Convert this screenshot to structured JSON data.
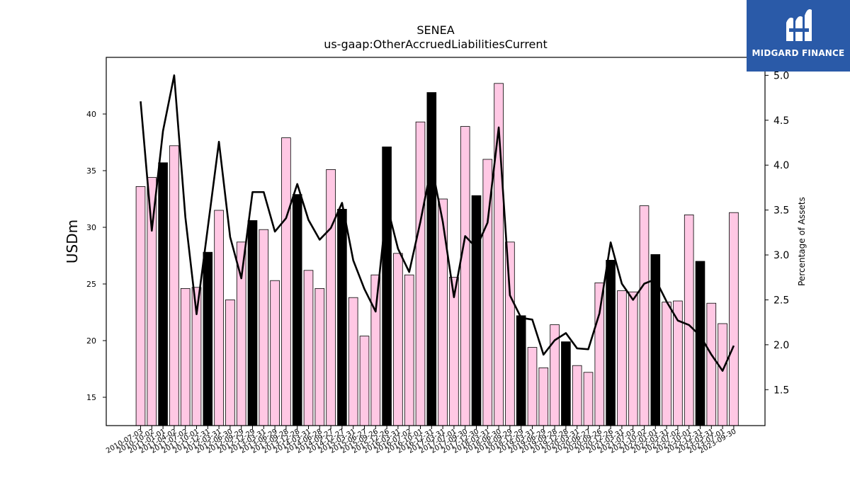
{
  "chart_data": {
    "type": "bar",
    "title": "SENEA",
    "subtitle": "us-gaap:OtherAccruedLiabilitiesCurrent",
    "ylabel": "USDm",
    "y2label": "Percentage of Assets",
    "ylim": [
      12.5,
      45
    ],
    "y2lim": [
      1.1,
      5.2
    ],
    "yticks": [
      15,
      20,
      25,
      30,
      35,
      40
    ],
    "y2ticks": [
      1.5,
      2.0,
      2.5,
      3.0,
      3.5,
      4.0,
      4.5,
      5.0
    ],
    "colors": {
      "bar_default": "#ffc8e4",
      "bar_highlight": "#000000",
      "line": "#000000",
      "edge": "#000000"
    },
    "categories": [
      "2010-07-03",
      "2010-10-02",
      "2011-01-01",
      "2011-04-02",
      "2011-07-02",
      "2011-10-01",
      "2011-12-31",
      "2012-03-31",
      "2012-06-30",
      "2012-09-29",
      "2012-12-29",
      "2013-03-31",
      "2013-06-29",
      "2013-09-28",
      "2013-12-28",
      "2014-03-31",
      "2014-06-28",
      "2014-09-27",
      "2014-12-27",
      "2015-03-31",
      "2015-06-27",
      "2015-09-26",
      "2015-12-26",
      "2016-03-31",
      "2016-07-02",
      "2016-10-01",
      "2016-12-31",
      "2017-03-31",
      "2017-07-01",
      "2017-09-30",
      "2017-12-30",
      "2018-03-31",
      "2018-06-30",
      "2018-09-29",
      "2018-12-29",
      "2019-03-31",
      "2019-06-29",
      "2019-09-28",
      "2019-12-28",
      "2020-03-31",
      "2020-06-27",
      "2020-09-26",
      "2020-12-26",
      "2021-03-31",
      "2021-07-03",
      "2021-10-02",
      "2022-01-01",
      "2022-03-31",
      "2022-07-02",
      "2022-10-01",
      "2022-12-31",
      "2023-03-31",
      "2023-07-01",
      "2023-09-30"
    ],
    "tick_labels": [
      "2010-07-03",
      "2010-10-02",
      "2011-01-01",
      "2011-04-02",
      "2011-07-02",
      "2011-10-01",
      "2011-12-31",
      "2012-03-31",
      "2012-06-30",
      "2012-09-29",
      "2012-12-29",
      "2013-03-31",
      "2013-06-29",
      "2013-09-28",
      "2013-12-28",
      "2014-03-31",
      "2014-06-28",
      "2014-09-27",
      "2014-12-27",
      "2015-03-31",
      "2015-06-27",
      "2015-09-26",
      "2015-12-26",
      "2016-03-31",
      "2016-07-02",
      "2016-10-01",
      "2016-12-31",
      "2017-03-31",
      "2017-07-01",
      "2017-09-30",
      "2017-12-30",
      "2018-03-31",
      "2018-06-30",
      "2018-09-29",
      "2018-12-29",
      "2019-03-31",
      "2019-06-29",
      "2019-09-28",
      "2019-12-28",
      "2020-03-31",
      "2020-06-27",
      "2020-09-26",
      "2020-12-26",
      "2021-03-31",
      "2021-07-03",
      "2021-10-02",
      "2022-01-01",
      "2022-03-31",
      "2022-07-02",
      "2022-10-01",
      "2022-12-31",
      "2023-03-31",
      "2023-07-01",
      "2023-09-30"
    ],
    "series": [
      {
        "type": "bar",
        "values": [
          33.6,
          34.4,
          35.7,
          37.2,
          24.6,
          24.7,
          27.8,
          31.5,
          23.6,
          28.7,
          30.6,
          29.8,
          25.3,
          37.9,
          32.9,
          26.2,
          24.6,
          35.1,
          31.6,
          23.8,
          20.4,
          25.8,
          37.1,
          27.7,
          25.8,
          39.3,
          41.9,
          32.5,
          25.6,
          38.9,
          32.8,
          36.0,
          42.7,
          28.7,
          22.2,
          19.4,
          17.6,
          21.4,
          19.9,
          17.8,
          17.2,
          25.1,
          27.1,
          24.4,
          24.3,
          31.9,
          27.6,
          23.4,
          23.5,
          31.1,
          27.0,
          23.3,
          21.5,
          31.3
        ],
        "highlight": [
          false,
          false,
          true,
          false,
          false,
          false,
          true,
          false,
          false,
          false,
          true,
          false,
          false,
          false,
          true,
          false,
          false,
          false,
          true,
          false,
          false,
          false,
          true,
          false,
          false,
          false,
          true,
          false,
          false,
          false,
          true,
          false,
          false,
          false,
          true,
          false,
          false,
          false,
          true,
          false,
          false,
          false,
          true,
          false,
          false,
          false,
          true,
          false,
          false,
          false,
          true,
          false,
          false,
          false
        ]
      },
      {
        "type": "line",
        "axis": "right",
        "values": [
          4.71,
          3.27,
          4.38,
          5.0,
          3.42,
          2.34,
          3.3,
          4.26,
          3.2,
          2.74,
          3.7,
          3.7,
          3.26,
          3.41,
          3.79,
          3.39,
          3.17,
          3.3,
          3.58,
          2.94,
          2.62,
          2.37,
          3.56,
          3.07,
          2.81,
          3.37,
          4.0,
          3.37,
          2.53,
          3.21,
          3.08,
          3.36,
          4.42,
          2.55,
          2.3,
          2.28,
          1.89,
          2.05,
          2.13,
          1.96,
          1.95,
          2.35,
          3.14,
          2.68,
          2.5,
          2.68,
          2.73,
          2.48,
          2.27,
          2.22,
          2.1,
          1.89,
          1.71,
          1.99
        ]
      }
    ],
    "grid": false,
    "legend": "none"
  },
  "logo": {
    "text": "MIDGARD FINANCE",
    "icon": "midgard-finance-logo-mark"
  }
}
